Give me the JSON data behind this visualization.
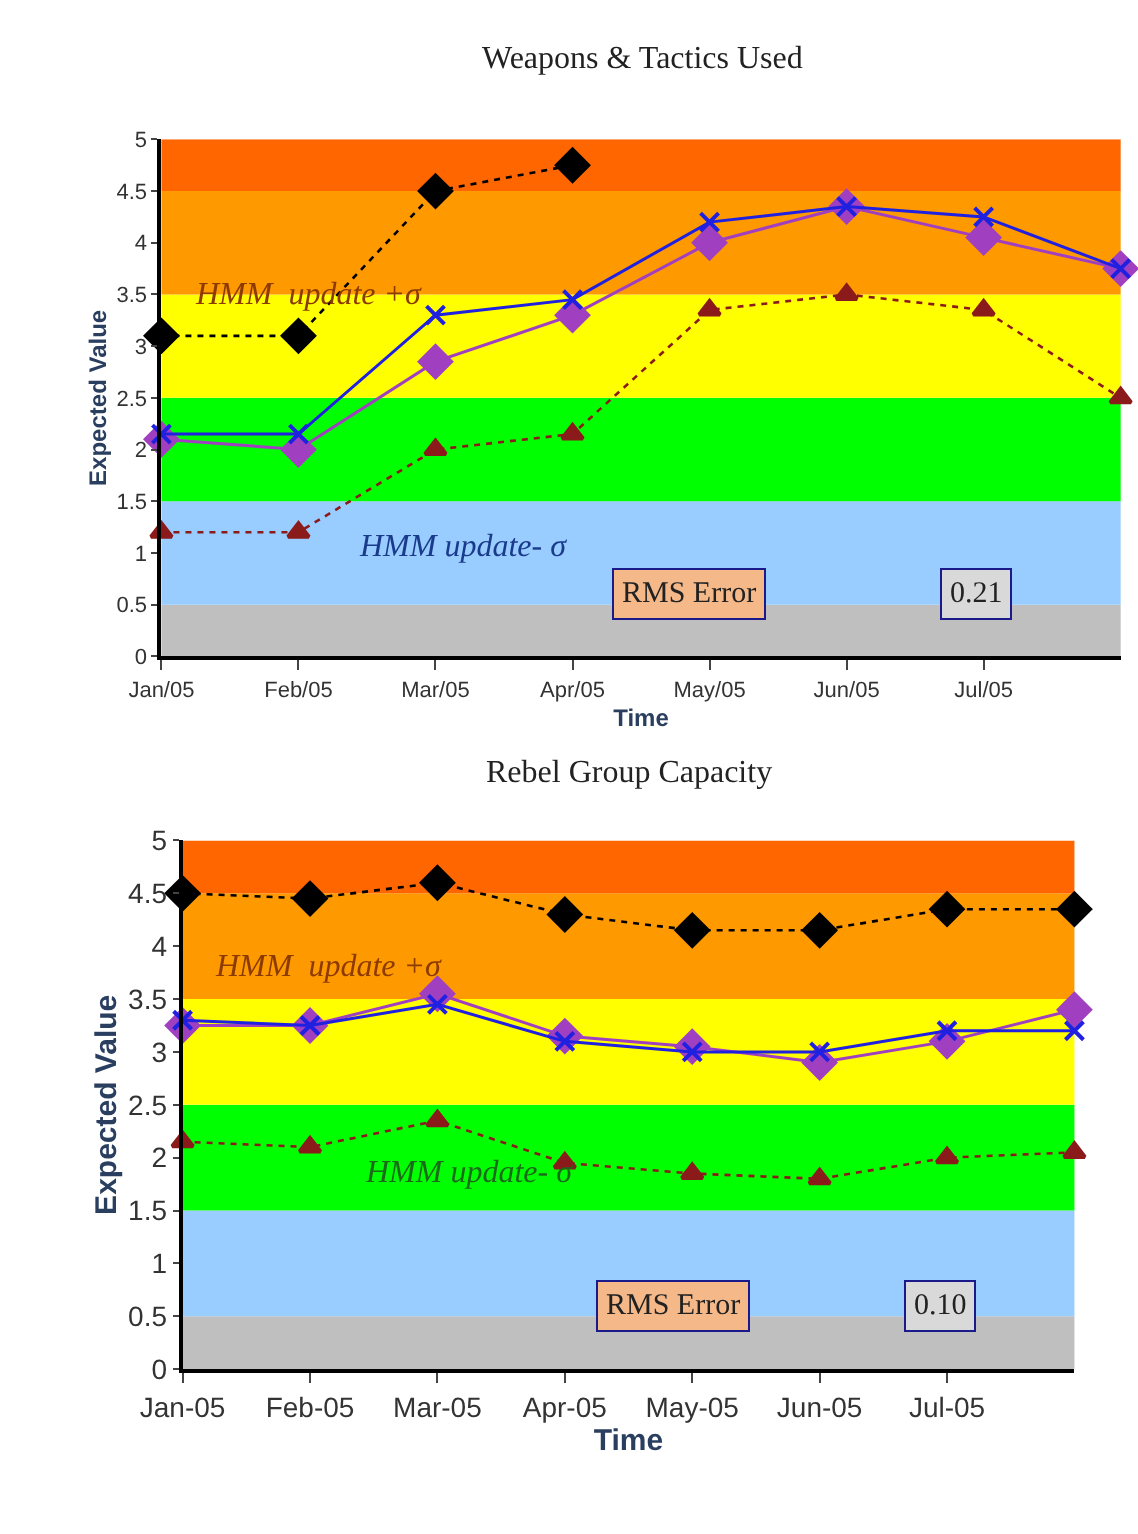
{
  "chart_data": [
    {
      "type": "line",
      "title": "Weapons & Tactics Used",
      "xlabel": "Time",
      "ylabel": "Expected Value",
      "categories": [
        "Jan/05",
        "Feb/05",
        "Mar/05",
        "Apr/05",
        "May/05",
        "Jun/05",
        "Jul/05",
        null
      ],
      "series": [
        {
          "color": "#000000",
          "marker": "diamond",
          "line_style": "dotted",
          "values": [
            3.1,
            3.1,
            4.5,
            4.75,
            null,
            null,
            null,
            null
          ]
        },
        {
          "color": "#a040c0",
          "marker": "diamond",
          "line_style": "solid",
          "values": [
            2.1,
            2.0,
            2.85,
            3.3,
            4.0,
            4.35,
            4.05,
            3.75
          ]
        },
        {
          "color": "#2020e0",
          "marker": "cross",
          "line_style": "solid",
          "values": [
            2.15,
            2.15,
            3.3,
            3.45,
            4.2,
            4.35,
            4.25,
            3.75
          ]
        },
        {
          "color": "#8b1a1a",
          "marker": "triangle",
          "line_style": "dotted",
          "values": [
            1.2,
            1.2,
            2.0,
            2.15,
            3.35,
            3.5,
            3.35,
            2.5
          ]
        }
      ],
      "bands": [
        {
          "axis": "y",
          "from": 0,
          "to": 0.5,
          "color": "#bfbfbf"
        },
        {
          "axis": "y",
          "from": 0.5,
          "to": 1.5,
          "color": "#99ccff"
        },
        {
          "axis": "y",
          "from": 1.5,
          "to": 2.5,
          "color": "#00ff00"
        },
        {
          "axis": "y",
          "from": 2.5,
          "to": 3.5,
          "color": "#ffff00"
        },
        {
          "axis": "y",
          "from": 3.5,
          "to": 4.5,
          "color": "#ff9900"
        },
        {
          "axis": "y",
          "from": 4.5,
          "to": 5,
          "color": "#ff6600"
        }
      ],
      "annotations": [
        "HMM  update +σ",
        "HMM update- σ",
        "RMS Error",
        "0.21"
      ],
      "ylim": [
        0,
        5
      ],
      "yticks": [
        0,
        0.5,
        1,
        1.5,
        2,
        2.5,
        3,
        3.5,
        4,
        4.5,
        5
      ],
      "grid": false
    },
    {
      "type": "line",
      "title": "Rebel Group Capacity",
      "xlabel": "Time",
      "ylabel": "Expected Value",
      "categories": [
        "Jan-05",
        "Feb-05",
        "Mar-05",
        "Apr-05",
        "May-05",
        "Jun-05",
        "Jul-05",
        null
      ],
      "series": [
        {
          "color": "#000000",
          "marker": "diamond",
          "line_style": "dotted",
          "values": [
            4.5,
            4.45,
            4.6,
            4.3,
            4.15,
            4.15,
            4.35,
            4.35
          ]
        },
        {
          "color": "#a040c0",
          "marker": "diamond",
          "line_style": "solid",
          "values": [
            3.25,
            3.25,
            3.55,
            3.15,
            3.05,
            2.9,
            3.1,
            3.4
          ]
        },
        {
          "color": "#2020e0",
          "marker": "cross",
          "line_style": "solid",
          "values": [
            3.3,
            3.25,
            3.45,
            3.1,
            3.0,
            3.0,
            3.2,
            3.2
          ]
        },
        {
          "color": "#8b1a1a",
          "marker": "triangle",
          "line_style": "dotted",
          "values": [
            2.15,
            2.1,
            2.35,
            1.95,
            1.85,
            1.8,
            2.0,
            2.05
          ]
        }
      ],
      "bands": [
        {
          "axis": "y",
          "from": 0,
          "to": 0.5,
          "color": "#bfbfbf"
        },
        {
          "axis": "y",
          "from": 0.5,
          "to": 1.5,
          "color": "#99ccff"
        },
        {
          "axis": "y",
          "from": 1.5,
          "to": 2.5,
          "color": "#00ff00"
        },
        {
          "axis": "y",
          "from": 2.5,
          "to": 3.5,
          "color": "#ffff00"
        },
        {
          "axis": "y",
          "from": 3.5,
          "to": 4.5,
          "color": "#ff9900"
        },
        {
          "axis": "y",
          "from": 4.5,
          "to": 5,
          "color": "#ff6600"
        }
      ],
      "annotations": [
        "HMM  update +σ",
        "HMM update- σ",
        "RMS Error",
        "0.10"
      ],
      "ylim": [
        0,
        5
      ],
      "yticks": [
        0,
        0.5,
        1,
        1.5,
        2,
        2.5,
        3,
        3.5,
        4,
        4.5,
        5
      ],
      "grid": false
    }
  ]
}
